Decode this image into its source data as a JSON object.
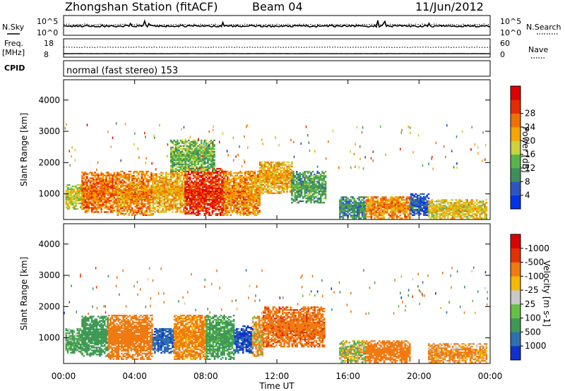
{
  "header": {
    "title": "Zhongshan Station (fitACF)",
    "beam": "Beam 04",
    "date": "11/Jun/2012"
  },
  "strips": {
    "nsky_label": "N.Sky",
    "nsearch_label": "N.Search",
    "noise_top": "10^5",
    "noise_bottom": "10^0",
    "freq_label": "Freq.",
    "freq_unit": "[MHz]",
    "freq_top": "18",
    "freq_bottom": "8",
    "nave_label": "Nave",
    "nave_top": "60",
    "nave_bottom": "0",
    "cpid_label": "CPID",
    "cpid_text": "normal (fast stereo) 153"
  },
  "axes": {
    "x_label": "Time UT",
    "x_ticks": [
      "00:00",
      "04:00",
      "08:00",
      "12:00",
      "16:00",
      "20:00",
      "00:00"
    ],
    "x_tick_hours": [
      0,
      4,
      8,
      12,
      16,
      20,
      24
    ],
    "x_range_hours": [
      0,
      24
    ],
    "y_label": "Slant Range [km]",
    "y_ticks": [
      "1000",
      "2000",
      "3000",
      "4000"
    ],
    "y_tick_values": [
      1000,
      2000,
      3000,
      4000
    ],
    "y_range_km": [
      180,
      4650
    ]
  },
  "colorbars": {
    "power": {
      "title": "Power [dB]",
      "labels": [
        "4",
        "8",
        "12",
        "16",
        "20",
        "24",
        "28"
      ],
      "colors": [
        "#0033ee",
        "#2e55c4",
        "#3f8f5d",
        "#58b44a",
        "#ccd23a",
        "#f5a500",
        "#f07000",
        "#e82a00",
        "#e00000"
      ]
    },
    "velocity": {
      "title": "Velocity [m s-1]",
      "labels": [
        "1000",
        "500",
        "100",
        "25",
        "-25",
        "-100",
        "-500",
        "-1000"
      ],
      "colors": [
        "#1030d0",
        "#2e6fb0",
        "#3f9a55",
        "#66c044",
        "#c8c8c8",
        "#f5b800",
        "#f07a10",
        "#e43000",
        "#e00000"
      ]
    }
  },
  "chart_data": [
    {
      "type": "heatmap",
      "panel": "power",
      "title": "Power [dB]",
      "xlabel": "Time UT",
      "ylabel": "Slant Range [km]",
      "xlim": [
        0,
        24
      ],
      "ylim": [
        180,
        4650
      ],
      "units": "dB",
      "approx_regions": [
        {
          "t": [
            0.1,
            1.0
          ],
          "range": [
            500,
            1300
          ],
          "power_db": 18
        },
        {
          "t": [
            1.0,
            3.0
          ],
          "range": [
            400,
            1700
          ],
          "power_db": 26
        },
        {
          "t": [
            3.0,
            5.0
          ],
          "range": [
            300,
            1700
          ],
          "power_db": 24
        },
        {
          "t": [
            5.0,
            6.8
          ],
          "range": [
            400,
            1700
          ],
          "power_db": 22
        },
        {
          "t": [
            6.8,
            9.0
          ],
          "range": [
            300,
            1800
          ],
          "power_db": 30
        },
        {
          "t": [
            9.0,
            11.0
          ],
          "range": [
            300,
            1700
          ],
          "power_db": 24
        },
        {
          "t": [
            11.0,
            12.8
          ],
          "range": [
            1000,
            2000
          ],
          "power_db": 22
        },
        {
          "t": [
            12.8,
            14.7
          ],
          "range": [
            700,
            1700
          ],
          "power_db": 12
        },
        {
          "t": [
            6.0,
            8.5
          ],
          "range": [
            1700,
            2700
          ],
          "power_db": 14
        },
        {
          "t": [
            15.5,
            17.0
          ],
          "range": [
            200,
            900
          ],
          "power_db": 10
        },
        {
          "t": [
            17.0,
            19.5
          ],
          "range": [
            200,
            900
          ],
          "power_db": 24
        },
        {
          "t": [
            19.5,
            20.5
          ],
          "range": [
            300,
            1000
          ],
          "power_db": 6
        },
        {
          "t": [
            20.5,
            23.8
          ],
          "range": [
            200,
            800
          ],
          "power_db": 20
        }
      ]
    },
    {
      "type": "heatmap",
      "panel": "velocity",
      "title": "Velocity [m s-1]",
      "xlabel": "Time UT",
      "ylabel": "Slant Range [km]",
      "xlim": [
        0,
        24
      ],
      "ylim": [
        180,
        4650
      ],
      "units": "m s-1",
      "approx_regions": [
        {
          "t": [
            0.1,
            1.0
          ],
          "range": [
            500,
            1300
          ],
          "velocity": 150
        },
        {
          "t": [
            1.0,
            2.5
          ],
          "range": [
            400,
            1700
          ],
          "velocity": 300
        },
        {
          "t": [
            2.5,
            5.0
          ],
          "range": [
            300,
            1700
          ],
          "velocity": -300
        },
        {
          "t": [
            5.0,
            6.2
          ],
          "range": [
            500,
            1300
          ],
          "velocity": 900
        },
        {
          "t": [
            6.2,
            8.0
          ],
          "range": [
            300,
            1700
          ],
          "velocity": -200
        },
        {
          "t": [
            8.0,
            9.6
          ],
          "range": [
            300,
            1700
          ],
          "velocity": 200
        },
        {
          "t": [
            9.6,
            10.6
          ],
          "range": [
            500,
            1400
          ],
          "velocity": 1000
        },
        {
          "t": [
            10.6,
            11.2
          ],
          "range": [
            400,
            1700
          ],
          "velocity": -100
        },
        {
          "t": [
            11.2,
            14.7
          ],
          "range": [
            700,
            2000
          ],
          "velocity": -400
        },
        {
          "t": [
            15.5,
            17.0
          ],
          "range": [
            200,
            900
          ],
          "velocity": 0
        },
        {
          "t": [
            17.0,
            19.5
          ],
          "range": [
            200,
            900
          ],
          "velocity": -300
        },
        {
          "t": [
            20.5,
            23.8
          ],
          "range": [
            200,
            800
          ],
          "velocity": -150
        }
      ]
    }
  ]
}
